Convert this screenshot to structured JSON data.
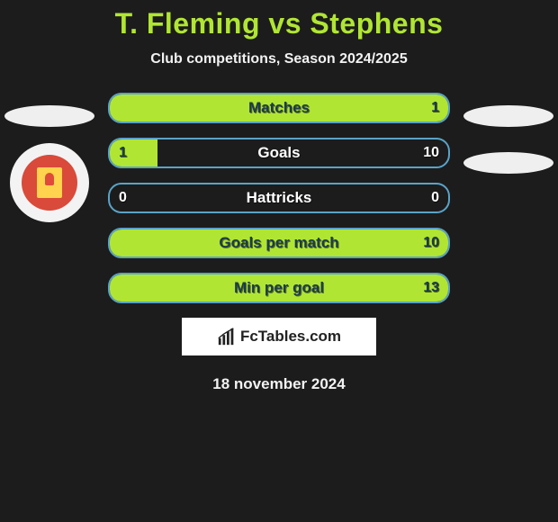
{
  "title": "T. Fleming vs Stephens",
  "subtitle": "Club competitions, Season 2024/2025",
  "date": "18 november 2024",
  "watermark_text": "FcTables.com",
  "colors": {
    "background": "#1c1c1c",
    "accent": "#b0e633",
    "bar_border": "#5aa3c7",
    "text_light": "#f2f2f2",
    "label_dark_blue": "#1c3a4f",
    "label_white": "#ffffff"
  },
  "rows": [
    {
      "label": "Matches",
      "left_val": "",
      "right_val": "1",
      "left_pct": 0,
      "right_pct": 100,
      "label_color": "#1c3a4f",
      "left_color": "#1c3a4f",
      "right_color": "#1c3a4f"
    },
    {
      "label": "Goals",
      "left_val": "1",
      "right_val": "10",
      "left_pct": 14,
      "right_pct": 0,
      "label_color": "#ffffff",
      "left_color": "#1c3a4f",
      "right_color": "#ffffff"
    },
    {
      "label": "Hattricks",
      "left_val": "0",
      "right_val": "0",
      "left_pct": 0,
      "right_pct": 0,
      "label_color": "#ffffff",
      "left_color": "#ffffff",
      "right_color": "#ffffff"
    },
    {
      "label": "Goals per match",
      "left_val": "",
      "right_val": "10",
      "left_pct": 0,
      "right_pct": 100,
      "label_color": "#1c3a4f",
      "left_color": "#1c3a4f",
      "right_color": "#1c3a4f"
    },
    {
      "label": "Min per goal",
      "left_val": "",
      "right_val": "13",
      "left_pct": 0,
      "right_pct": 100,
      "label_color": "#1c3a4f",
      "left_color": "#1c3a4f",
      "right_color": "#1c3a4f"
    }
  ]
}
